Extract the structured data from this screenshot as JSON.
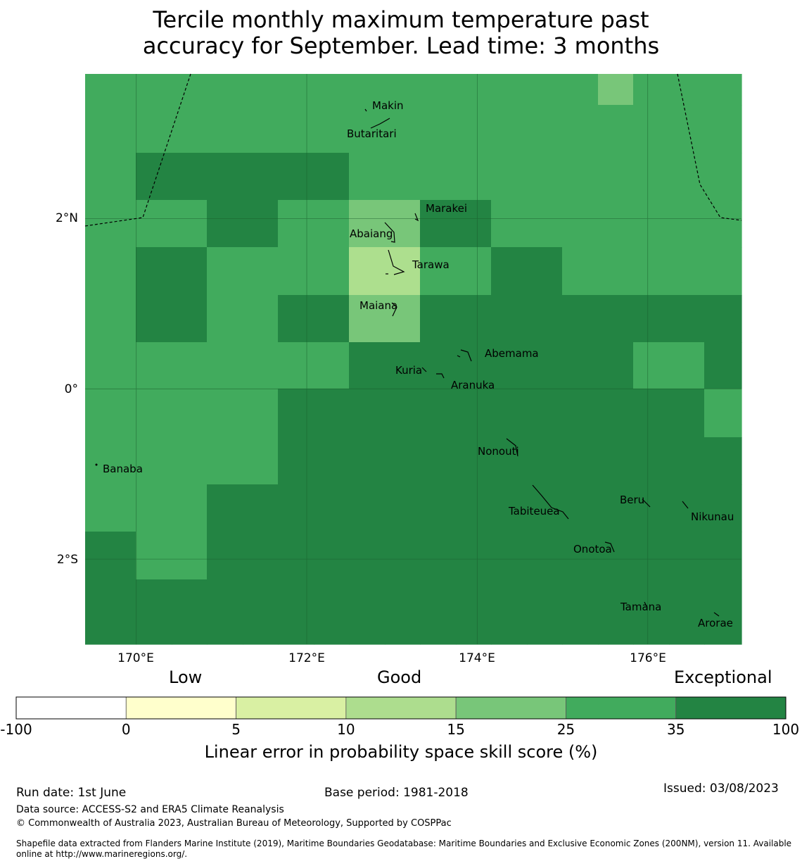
{
  "title_line1": "Tercile monthly maximum temperature past",
  "title_line2": "accuracy for September. Lead time: 3 months",
  "map": {
    "lon_ticks": [
      "170°E",
      "172°E",
      "174°E",
      "176°E"
    ],
    "lat_ticks": [
      "2°N",
      "0°",
      "2°S"
    ],
    "grid_lon_range": [
      169.4,
      177.1
    ],
    "grid_lat_range": [
      -3.0,
      3.7
    ],
    "skill_levels": [
      [
        2,
        2,
        2,
        2,
        2,
        2,
        2,
        2,
        2,
        2,
        2,
        2,
        2,
        2,
        1,
        2,
        2,
        2
      ],
      [
        2,
        2,
        2,
        2,
        2,
        2,
        2,
        2,
        2,
        2,
        2,
        2,
        2,
        2,
        2,
        2,
        2,
        2
      ],
      [
        2,
        3,
        3,
        3,
        3,
        3,
        3,
        2,
        2,
        2,
        2,
        2,
        2,
        2,
        2,
        2,
        2,
        2
      ],
      [
        2,
        2,
        2,
        3,
        3,
        2,
        2,
        1,
        1,
        3,
        3,
        2,
        2,
        2,
        2,
        2,
        2,
        2
      ],
      [
        2,
        3,
        3,
        2,
        2,
        2,
        2,
        0,
        0,
        2,
        2,
        3,
        3,
        2,
        2,
        2,
        2,
        2
      ],
      [
        2,
        3,
        3,
        2,
        2,
        3,
        3,
        1,
        1,
        3,
        3,
        3,
        3,
        3,
        3,
        3,
        3,
        3
      ],
      [
        2,
        2,
        2,
        2,
        2,
        2,
        2,
        3,
        3,
        3,
        3,
        3,
        3,
        3,
        3,
        2,
        2,
        3
      ],
      [
        2,
        2,
        2,
        2,
        2,
        3,
        3,
        3,
        3,
        3,
        3,
        3,
        3,
        3,
        3,
        3,
        3,
        2
      ],
      [
        2,
        2,
        2,
        2,
        2,
        3,
        3,
        3,
        3,
        3,
        3,
        3,
        3,
        3,
        3,
        3,
        3,
        3
      ],
      [
        2,
        2,
        2,
        3,
        3,
        3,
        3,
        3,
        3,
        3,
        3,
        3,
        3,
        3,
        3,
        3,
        3,
        3
      ],
      [
        3,
        2,
        2,
        3,
        3,
        3,
        3,
        3,
        3,
        3,
        3,
        3,
        3,
        3,
        3,
        3,
        3,
        3
      ],
      [
        3,
        3,
        3,
        3,
        3,
        3,
        3,
        3,
        3,
        3,
        3,
        3,
        3,
        3,
        3,
        3,
        3,
        3
      ]
    ],
    "skill_colors": [
      "#addf8e",
      "#78c679",
      "#41ab5d",
      "#238443"
    ],
    "islands": [
      {
        "name": "Makin",
        "lon": 172.95,
        "lat": 3.38
      },
      {
        "name": "Butaritari",
        "lon": 172.78,
        "lat": 3.05
      },
      {
        "name": "Marakei",
        "lon": 173.4,
        "lat": 2.1
      },
      {
        "name": "Abaiang",
        "lon": 172.78,
        "lat": 1.85
      },
      {
        "name": "Tarawa",
        "lon": 173.3,
        "lat": 1.5
      },
      {
        "name": "Maiana",
        "lon": 172.85,
        "lat": 1.02
      },
      {
        "name": "Abemama",
        "lon": 174.4,
        "lat": 0.42
      },
      {
        "name": "Kuria",
        "lon": 173.1,
        "lat": 0.22
      },
      {
        "name": "Aranuka",
        "lon": 173.6,
        "lat": 0.04
      },
      {
        "name": "Nonouti",
        "lon": 174.2,
        "lat": -0.73
      },
      {
        "name": "Banaba",
        "lon": 169.7,
        "lat": -0.93
      },
      {
        "name": "Tabiteuea",
        "lon": 174.7,
        "lat": -1.43
      },
      {
        "name": "Beru",
        "lon": 175.8,
        "lat": -1.31
      },
      {
        "name": "Nikunau",
        "lon": 176.55,
        "lat": -1.5
      },
      {
        "name": "Onotoa",
        "lon": 175.35,
        "lat": -1.88
      },
      {
        "name": "Tamana",
        "lon": 175.8,
        "lat": -2.56
      },
      {
        "name": "Arorae",
        "lon": 176.6,
        "lat": -2.75
      }
    ]
  },
  "colorbar": {
    "category_low": "Low",
    "category_good": "Good",
    "category_exceptional": "Exceptional",
    "boundaries": [
      "-100",
      "0",
      "5",
      "10",
      "15",
      "25",
      "35",
      "100"
    ],
    "colors": [
      "#ffffff",
      "#ffffcc",
      "#d9f0a3",
      "#addd8e",
      "#78c679",
      "#41ab5d",
      "#238443"
    ],
    "title": "Linear error in probability space skill score (%)"
  },
  "footer": {
    "run_date": "Run date: 1st June",
    "base_period": "Base period: 1981-2018",
    "issued": "Issued: 03/08/2023",
    "data_source": "Data source: ACCESS-S2 and ERA5 Climate Reanalysis",
    "copyright": "© Commonwealth of Australia 2023, Australian Bureau of Meteorology, Supported by COSPPac",
    "shapefile_line1": "Shapefile data extracted from Flanders Marine Institute (2019), Maritime Boundaries Geodatabase: Maritime Boundaries and Exclusive Economic Zones (200NM), version 11. Available",
    "shapefile_line2": "online at http://www.marineregions.org/."
  }
}
